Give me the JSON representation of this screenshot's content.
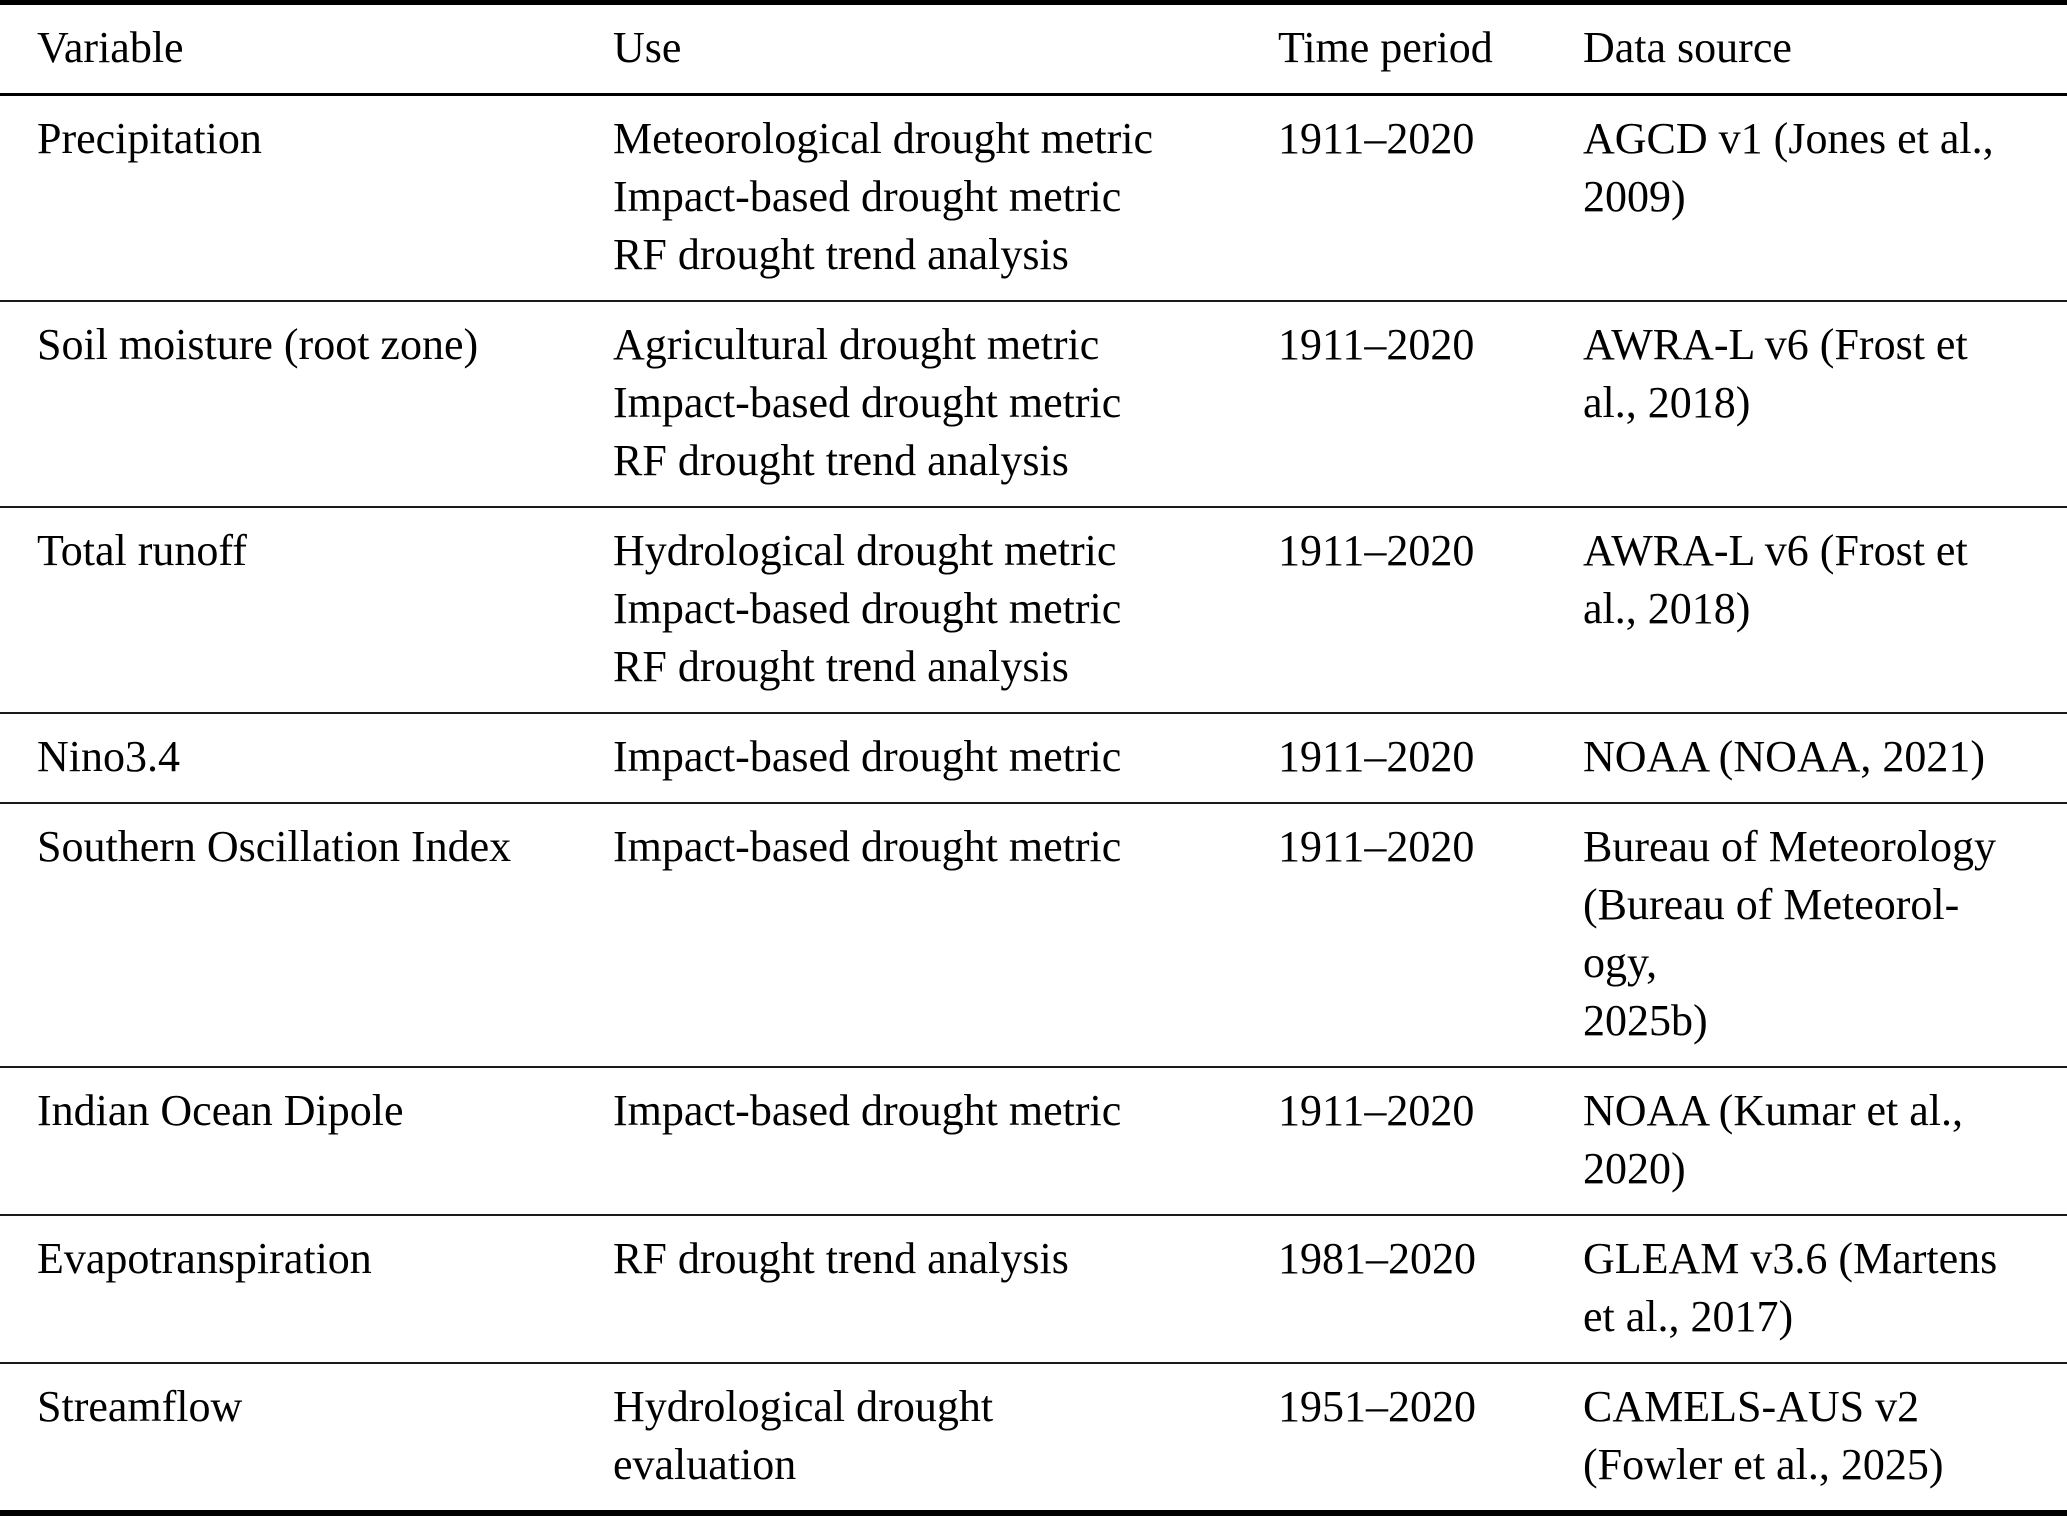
{
  "colors": {
    "text": "#000000",
    "background": "#ffffff",
    "rule": "#000000"
  },
  "table": {
    "columns": [
      {
        "key": "variable",
        "label": "Variable"
      },
      {
        "key": "use",
        "label": "Use"
      },
      {
        "key": "time-period",
        "label": "Time period"
      },
      {
        "key": "data-source",
        "label": "Data source"
      }
    ],
    "rows": [
      {
        "variable": "Precipitation",
        "use_lines": [
          "Meteorological drought metric",
          "Impact-based drought metric",
          "RF drought trend analysis"
        ],
        "time_period": "1911–2020",
        "data_source_lines": [
          "AGCD v1 (Jones et al.,",
          "2009)"
        ]
      },
      {
        "variable": "Soil moisture (root zone)",
        "use_lines": [
          "Agricultural drought metric",
          "Impact-based drought metric",
          "RF drought trend analysis"
        ],
        "time_period": "1911–2020",
        "data_source_lines": [
          "AWRA-L v6 (Frost et",
          "al., 2018)"
        ]
      },
      {
        "variable": "Total runoff",
        "use_lines": [
          "Hydrological drought metric",
          "Impact-based drought metric",
          "RF drought trend analysis"
        ],
        "time_period": "1911–2020",
        "data_source_lines": [
          "AWRA-L v6 (Frost et",
          "al., 2018)"
        ]
      },
      {
        "variable": "Nino3.4",
        "use_lines": [
          "Impact-based drought metric"
        ],
        "time_period": "1911–2020",
        "data_source_lines": [
          "NOAA (NOAA, 2021)"
        ]
      },
      {
        "variable": "Southern Oscillation Index",
        "use_lines": [
          "Impact-based drought metric"
        ],
        "time_period": "1911–2020",
        "data_source_lines": [
          "Bureau of Meteorology",
          "(Bureau of Meteorol-",
          "ogy,",
          "2025b)"
        ]
      },
      {
        "variable": "Indian Ocean Dipole",
        "use_lines": [
          "Impact-based drought metric"
        ],
        "time_period": "1911–2020",
        "data_source_lines": [
          "NOAA (Kumar et al.,",
          "2020)"
        ]
      },
      {
        "variable": "Evapotranspiration",
        "use_lines": [
          "RF drought trend analysis"
        ],
        "time_period": "1981–2020",
        "data_source_lines": [
          "GLEAM v3.6 (Martens",
          "et al., 2017)"
        ]
      },
      {
        "variable": "Streamflow",
        "use_lines": [
          "Hydrological drought",
          "evaluation"
        ],
        "time_period": "1951–2020",
        "data_source_lines": [
          "CAMELS-AUS v2",
          "(Fowler et al., 2025)"
        ]
      }
    ]
  }
}
